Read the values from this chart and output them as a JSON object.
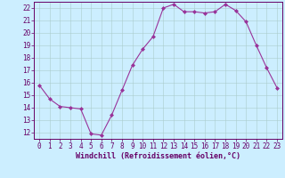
{
  "x": [
    0,
    1,
    2,
    3,
    4,
    5,
    6,
    7,
    8,
    9,
    10,
    11,
    12,
    13,
    14,
    15,
    16,
    17,
    18,
    19,
    20,
    21,
    22,
    23
  ],
  "y": [
    15.8,
    14.7,
    14.1,
    14.0,
    13.9,
    11.9,
    11.8,
    13.4,
    15.4,
    17.4,
    18.7,
    19.7,
    22.0,
    22.3,
    21.7,
    21.7,
    21.6,
    21.7,
    22.3,
    21.8,
    20.9,
    19.0,
    17.2,
    15.6
  ],
  "line_color": "#993399",
  "marker": "D",
  "marker_size": 2.0,
  "bg_color": "#cceeff",
  "grid_color": "#aacccc",
  "xlabel": "Windchill (Refroidissement éolien,°C)",
  "ylim": [
    11.5,
    22.5
  ],
  "xlim": [
    -0.5,
    23.5
  ],
  "yticks": [
    12,
    13,
    14,
    15,
    16,
    17,
    18,
    19,
    20,
    21,
    22
  ],
  "xticks": [
    0,
    1,
    2,
    3,
    4,
    5,
    6,
    7,
    8,
    9,
    10,
    11,
    12,
    13,
    14,
    15,
    16,
    17,
    18,
    19,
    20,
    21,
    22,
    23
  ],
  "tick_color": "#660066",
  "xlabel_color": "#660066",
  "spine_color": "#660066",
  "tick_labelsize": 5.5,
  "xlabel_fontsize": 6.0,
  "linewidth": 0.8
}
